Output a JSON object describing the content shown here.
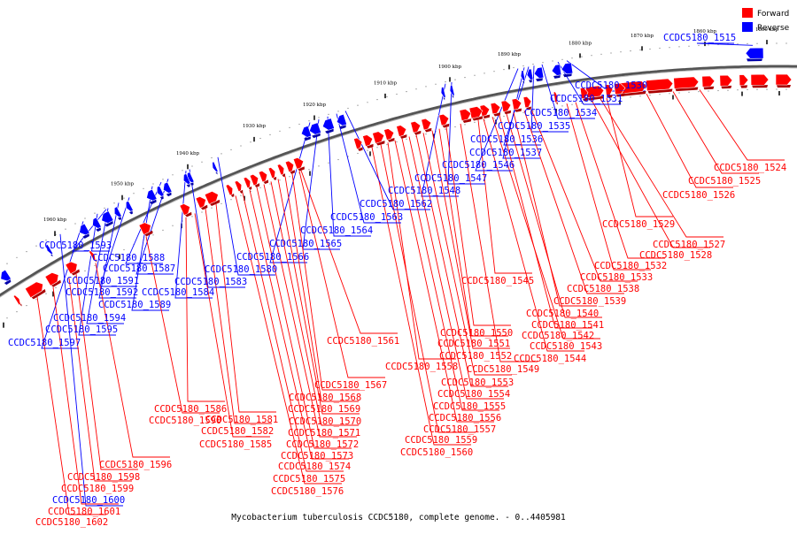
{
  "caption": "Mycobacterium tuberculosis CCDC5180, complete genome. - 0..4405981",
  "colors": {
    "forward": "#ff0000",
    "reverse": "#0000ff",
    "axis": "#888888"
  },
  "legend": [
    {
      "label": "Forward",
      "color": "#ff0000"
    },
    {
      "label": "Reverse",
      "color": "#0000ff"
    }
  ],
  "ticks": [
    "1850 kbp",
    "1860 kbp",
    "1870 kbp",
    "1880 kbp",
    "1890 kbp",
    "1900 kbp",
    "1910 kbp",
    "1920 kbp",
    "1930 kbp",
    "1940 kbp",
    "1950 kbp",
    "1960 kbp"
  ],
  "labels": [
    {
      "text": "CCDC5180_1515",
      "strand": "reverse"
    },
    {
      "text": "CCDC5180_1524",
      "strand": "forward"
    },
    {
      "text": "CCDC5180_1525",
      "strand": "forward"
    },
    {
      "text": "CCDC5180_1526",
      "strand": "forward"
    },
    {
      "text": "CCDC5180_1527",
      "strand": "forward"
    },
    {
      "text": "CCDC5180_1528",
      "strand": "forward"
    },
    {
      "text": "CCDC5180_1529",
      "strand": "forward"
    },
    {
      "text": "CCDC5180_1530",
      "strand": "reverse"
    },
    {
      "text": "CCDC5180_1531",
      "strand": "reverse"
    },
    {
      "text": "CCDC5180_1532",
      "strand": "forward"
    },
    {
      "text": "CCDC5180_1533",
      "strand": "forward"
    },
    {
      "text": "CCDC5180_1534",
      "strand": "reverse"
    },
    {
      "text": "CCDC5180_1535",
      "strand": "reverse"
    },
    {
      "text": "CCDC5180_1536",
      "strand": "reverse"
    },
    {
      "text": "CCDC5180_1537",
      "strand": "reverse"
    },
    {
      "text": "CCDC5180_1538",
      "strand": "forward"
    },
    {
      "text": "CCDC5180_1539",
      "strand": "forward"
    },
    {
      "text": "CCDC5180_1540",
      "strand": "forward"
    },
    {
      "text": "CCDC5180_1541",
      "strand": "forward"
    },
    {
      "text": "CCDC5180_1542",
      "strand": "forward"
    },
    {
      "text": "CCDC5180_1543",
      "strand": "forward"
    },
    {
      "text": "CCDC5180_1544",
      "strand": "forward"
    },
    {
      "text": "CCDC5180_1545",
      "strand": "forward"
    },
    {
      "text": "CCDC5180_1546",
      "strand": "reverse"
    },
    {
      "text": "CCDC5180_1547",
      "strand": "reverse"
    },
    {
      "text": "CCDC5180_1548",
      "strand": "reverse"
    },
    {
      "text": "CCDC5180_1549",
      "strand": "forward"
    },
    {
      "text": "CCDC5180_1550",
      "strand": "forward"
    },
    {
      "text": "CCDC5180_1551",
      "strand": "forward"
    },
    {
      "text": "CCDC5180_1552",
      "strand": "forward"
    },
    {
      "text": "CCDC5180_1553",
      "strand": "forward"
    },
    {
      "text": "CCDC5180_1554",
      "strand": "forward"
    },
    {
      "text": "CCDC5180_1555",
      "strand": "forward"
    },
    {
      "text": "CCDC5180_1556",
      "strand": "forward"
    },
    {
      "text": "CCDC5180_1557",
      "strand": "forward"
    },
    {
      "text": "CCDC5180_1558",
      "strand": "forward"
    },
    {
      "text": "CCDC5180_1559",
      "strand": "forward"
    },
    {
      "text": "CCDC5180_1560",
      "strand": "forward"
    },
    {
      "text": "CCDC5180_1561",
      "strand": "forward"
    },
    {
      "text": "CCDC5180_1562",
      "strand": "reverse"
    },
    {
      "text": "CCDC5180_1563",
      "strand": "reverse"
    },
    {
      "text": "CCDC5180_1564",
      "strand": "reverse"
    },
    {
      "text": "CCDC5180_1565",
      "strand": "reverse"
    },
    {
      "text": "CCDC5180_1566",
      "strand": "reverse"
    },
    {
      "text": "CCDC5180_1567",
      "strand": "forward"
    },
    {
      "text": "CCDC5180_1568",
      "strand": "forward"
    },
    {
      "text": "CCDC5180_1569",
      "strand": "forward"
    },
    {
      "text": "CCDC5180_1570",
      "strand": "forward"
    },
    {
      "text": "CCDC5180_1571",
      "strand": "forward"
    },
    {
      "text": "CCDC5180_1572",
      "strand": "forward"
    },
    {
      "text": "CCDC5180_1573",
      "strand": "forward"
    },
    {
      "text": "CCDC5180_1574",
      "strand": "forward"
    },
    {
      "text": "CCDC5180_1575",
      "strand": "forward"
    },
    {
      "text": "CCDC5180_1576",
      "strand": "forward"
    },
    {
      "text": "CCDC5180_1580",
      "strand": "reverse"
    },
    {
      "text": "CCDC5180_1581",
      "strand": "forward"
    },
    {
      "text": "CCDC5180_1582",
      "strand": "forward"
    },
    {
      "text": "CCDC5180_1583",
      "strand": "reverse"
    },
    {
      "text": "CCDC5180_1584",
      "strand": "reverse"
    },
    {
      "text": "CCDC5180_1585",
      "strand": "forward"
    },
    {
      "text": "CCDC5180_1586",
      "strand": "forward"
    },
    {
      "text": "CCDC5180_1587",
      "strand": "reverse"
    },
    {
      "text": "CCDC5180_1588",
      "strand": "reverse"
    },
    {
      "text": "CCDC5180_1589",
      "strand": "reverse"
    },
    {
      "text": "CCDC5180_1590",
      "strand": "forward"
    },
    {
      "text": "CCDC5180_1591",
      "strand": "reverse"
    },
    {
      "text": "CCDC5180_1592",
      "strand": "reverse"
    },
    {
      "text": "CCDC5180_1593",
      "strand": "reverse"
    },
    {
      "text": "CCDC5180_1594",
      "strand": "reverse"
    },
    {
      "text": "CCDC5180_1595",
      "strand": "reverse"
    },
    {
      "text": "CCDC5180_1596",
      "strand": "forward"
    },
    {
      "text": "CCDC5180_1597",
      "strand": "reverse"
    },
    {
      "text": "CCDC5180_1598",
      "strand": "forward"
    },
    {
      "text": "CCDC5180_1599",
      "strand": "forward"
    },
    {
      "text": "CCDC5180_1600",
      "strand": "reverse"
    },
    {
      "text": "CCDC5180_1601",
      "strand": "forward"
    },
    {
      "text": "CCDC5180_1602",
      "strand": "forward"
    }
  ]
}
